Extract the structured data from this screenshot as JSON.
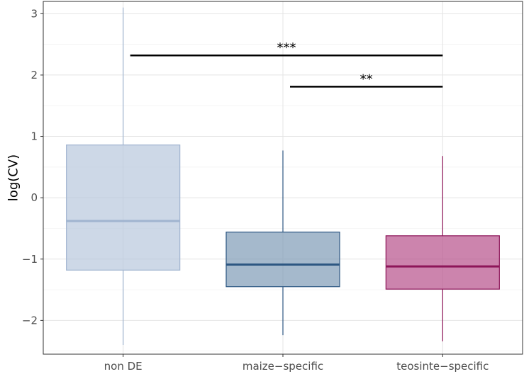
{
  "chart_data": {
    "type": "box",
    "title": "",
    "xlabel": "",
    "ylabel": "log(CV)",
    "ylim": [
      -2.55,
      3.2
    ],
    "yticks": [
      -2,
      -1,
      0,
      1,
      2,
      3
    ],
    "ytick_labels": [
      "−2",
      "−1",
      "0",
      "1",
      "2",
      "3"
    ],
    "grid": true,
    "legend": "none",
    "categories": [
      "non DE",
      "maize−specific",
      "teosinte−specific"
    ],
    "boxes": [
      {
        "label": "non DE",
        "whisker_low": -2.4,
        "q1": -1.18,
        "median": -0.38,
        "q3": 0.86,
        "whisker_high": 3.1,
        "fill": "#b8c7dd",
        "stroke": "#a0b4d0"
      },
      {
        "label": "maize−specific",
        "whisker_low": -2.24,
        "q1": -1.45,
        "median": -1.09,
        "q3": -0.56,
        "whisker_high": 0.77,
        "fill": "#7f9bb7",
        "stroke": "#2d5782"
      },
      {
        "label": "teosinte−specific",
        "whisker_low": -2.34,
        "q1": -1.49,
        "median": -1.12,
        "q3": -0.62,
        "whisker_high": 0.68,
        "fill": "#b6508a",
        "stroke": "#8d1659"
      }
    ],
    "significance": [
      {
        "from": 0,
        "to": 2,
        "y": 2.32,
        "label": "***"
      },
      {
        "from": 1,
        "to": 2,
        "y": 1.81,
        "label": "**"
      }
    ]
  }
}
